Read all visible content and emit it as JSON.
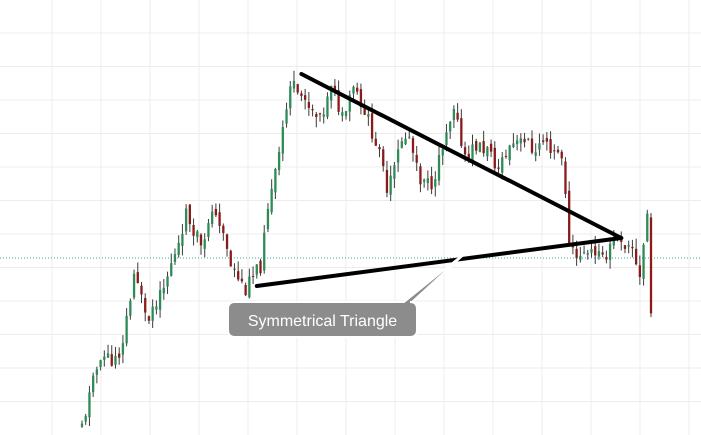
{
  "colors": {
    "background": "#ffffff",
    "grid": "#ececec",
    "up_candle": "#2e8b57",
    "down_candle": "#8b1a1a",
    "wick": "#3a3a3a",
    "trendline": "#000000",
    "reference_line": "#3fa7a0",
    "callout_fill": "#8c8c8c",
    "callout_text": "#ffffff"
  },
  "annotation": {
    "label": "Symmetrical Triangle"
  },
  "chart_data": {
    "type": "candlestick",
    "pattern": "symmetrical triangle",
    "title": "",
    "xlabel": "",
    "ylabel": "",
    "ylim": [
      0,
      100
    ],
    "grid": true,
    "candle_count": 154,
    "series": [
      {
        "name": "",
        "close_path": [
          {
            "index": 0,
            "price": 2
          },
          {
            "index": 5,
            "price": 20
          },
          {
            "index": 10,
            "price": 18
          },
          {
            "index": 14,
            "price": 40
          },
          {
            "index": 18,
            "price": 28
          },
          {
            "index": 22,
            "price": 36
          },
          {
            "index": 28,
            "price": 55
          },
          {
            "index": 32,
            "price": 48
          },
          {
            "index": 36,
            "price": 56
          },
          {
            "index": 40,
            "price": 42
          },
          {
            "index": 44,
            "price": 36
          },
          {
            "index": 48,
            "price": 42
          },
          {
            "index": 51,
            "price": 62
          },
          {
            "index": 54,
            "price": 77
          },
          {
            "index": 57,
            "price": 90
          },
          {
            "index": 60,
            "price": 82
          },
          {
            "index": 64,
            "price": 78
          },
          {
            "index": 67,
            "price": 86
          },
          {
            "index": 70,
            "price": 80
          },
          {
            "index": 73,
            "price": 88
          },
          {
            "index": 76,
            "price": 81
          },
          {
            "index": 79,
            "price": 73
          },
          {
            "index": 82,
            "price": 62
          },
          {
            "index": 85,
            "price": 72
          },
          {
            "index": 88,
            "price": 74
          },
          {
            "index": 91,
            "price": 62
          },
          {
            "index": 94,
            "price": 63
          },
          {
            "index": 97,
            "price": 71
          },
          {
            "index": 100,
            "price": 80
          },
          {
            "index": 103,
            "price": 70
          },
          {
            "index": 106,
            "price": 72
          },
          {
            "index": 109,
            "price": 71
          },
          {
            "index": 112,
            "price": 66
          },
          {
            "index": 115,
            "price": 72
          },
          {
            "index": 118,
            "price": 75
          },
          {
            "index": 121,
            "price": 71
          },
          {
            "index": 124,
            "price": 73
          },
          {
            "index": 127,
            "price": 71
          },
          {
            "index": 129,
            "price": 70
          },
          {
            "index": 131,
            "price": 48
          },
          {
            "index": 134,
            "price": 44
          },
          {
            "index": 137,
            "price": 47
          },
          {
            "index": 140,
            "price": 43
          },
          {
            "index": 143,
            "price": 50
          },
          {
            "index": 146,
            "price": 45
          },
          {
            "index": 148,
            "price": 46
          },
          {
            "index": 150,
            "price": 40
          },
          {
            "index": 152,
            "price": 55
          },
          {
            "index": 153,
            "price": 30
          }
        ]
      }
    ],
    "trendlines": [
      {
        "name": "upper",
        "from": {
          "index": 59,
          "price": 90
        },
        "to": {
          "index": 145,
          "price": 49
        }
      },
      {
        "name": "lower",
        "from": {
          "index": 47,
          "price": 37
        },
        "to": {
          "index": 145,
          "price": 49
        }
      }
    ],
    "reference_line": {
      "price": 44,
      "style": "dotted"
    },
    "annotation": {
      "text": "Symmetrical Triangle",
      "points_to": {
        "index": 104,
        "price": 46
      }
    }
  }
}
